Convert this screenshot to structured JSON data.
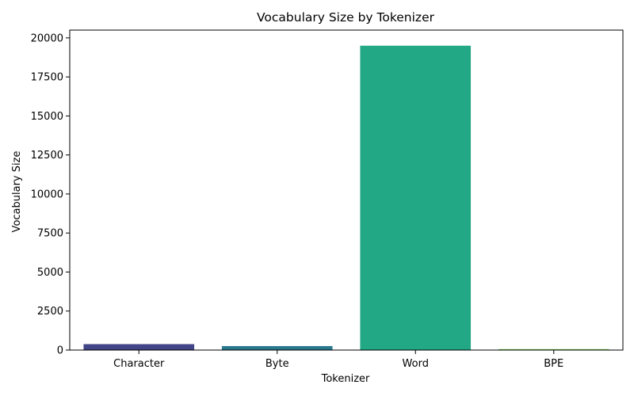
{
  "chart_data": {
    "type": "bar",
    "title": "Vocabulary Size by Tokenizer",
    "xlabel": "Tokenizer",
    "ylabel": "Vocabulary Size",
    "categories": [
      "Character",
      "Byte",
      "Word",
      "BPE"
    ],
    "values": [
      380,
      256,
      19500,
      60
    ],
    "colors": [
      "#414487",
      "#2a788e",
      "#22a884",
      "#7ad151"
    ],
    "ylim": [
      0,
      20500
    ],
    "yticks": [
      0,
      2500,
      5000,
      7500,
      10000,
      12500,
      15000,
      17500,
      20000
    ],
    "ytick_labels": [
      "0",
      "2500",
      "5000",
      "7500",
      "10000",
      "12500",
      "15000",
      "17500",
      "20000"
    ],
    "grid": false,
    "legend": "none"
  }
}
